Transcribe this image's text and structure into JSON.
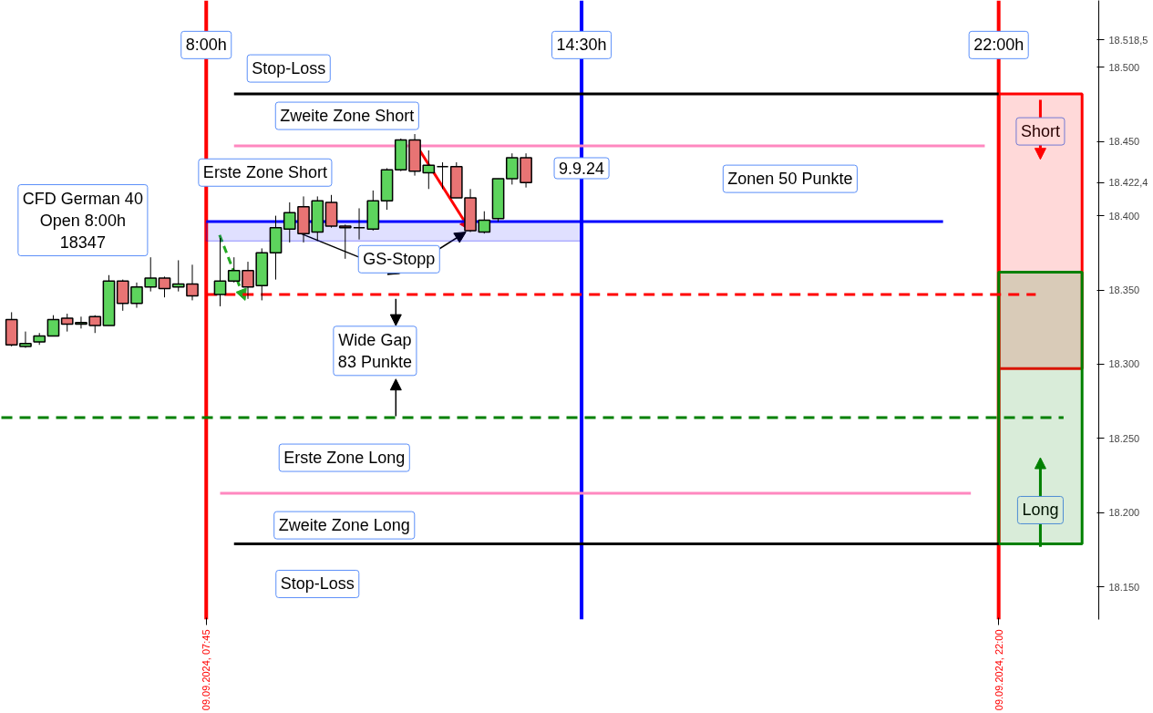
{
  "chart_data": {
    "type": "candlestick",
    "x": [
      "2024-09-09T04:15",
      "2024-09-09T04:30",
      "2024-09-09T04:45",
      "2024-09-09T05:00",
      "2024-09-09T05:15",
      "2024-09-09T05:30",
      "2024-09-09T05:45",
      "2024-09-09T06:00",
      "2024-09-09T06:15",
      "2024-09-09T06:30",
      "2024-09-09T06:45",
      "2024-09-09T07:00",
      "2024-09-09T07:15",
      "2024-09-09T07:30",
      "2024-09-09T08:00",
      "2024-09-09T08:15",
      "2024-09-09T08:30",
      "2024-09-09T08:45",
      "2024-09-09T09:00",
      "2024-09-09T09:15",
      "2024-09-09T09:30",
      "2024-09-09T09:45",
      "2024-09-09T10:00",
      "2024-09-09T10:15",
      "2024-09-09T10:30",
      "2024-09-09T10:45",
      "2024-09-09T11:00",
      "2024-09-09T11:15",
      "2024-09-09T11:30",
      "2024-09-09T11:45",
      "2024-09-09T12:00",
      "2024-09-09T12:15",
      "2024-09-09T12:30",
      "2024-09-09T12:45",
      "2024-09-09T13:00",
      "2024-09-09T13:15",
      "2024-09-09T13:30"
    ],
    "ohlc": [
      [
        18330,
        18335,
        18312,
        18313
      ],
      [
        18312,
        18322,
        18311,
        18314
      ],
      [
        18315,
        18321,
        18313,
        18319
      ],
      [
        18319,
        18333,
        18319,
        18330
      ],
      [
        18331,
        18334,
        18322,
        18327
      ],
      [
        18327,
        18332,
        18324,
        18328
      ],
      [
        18332,
        18333,
        18321,
        18326
      ],
      [
        18326,
        18360,
        18326,
        18356
      ],
      [
        18356,
        18357,
        18336,
        18341
      ],
      [
        18341,
        18355,
        18338,
        18352
      ],
      [
        18352,
        18372,
        18349,
        18358
      ],
      [
        18358,
        18359,
        18345,
        18351
      ],
      [
        18352,
        18370,
        18349,
        18354
      ],
      [
        18354,
        18367,
        18343,
        18346
      ],
      [
        18347,
        18385,
        18339,
        18356
      ],
      [
        18356,
        18372,
        18355,
        18363
      ],
      [
        18363,
        18369,
        18344,
        18352
      ],
      [
        18353,
        18378,
        18343,
        18375
      ],
      [
        18375,
        18400,
        18357,
        18392
      ],
      [
        18391,
        18409,
        18382,
        18402
      ],
      [
        18406,
        18413,
        18382,
        18388
      ],
      [
        18389,
        18413,
        18383,
        18410
      ],
      [
        18409,
        18414,
        18392,
        18393
      ],
      [
        18393,
        18394,
        18371,
        18392
      ],
      [
        18392,
        18405,
        18384,
        18392
      ],
      [
        18391,
        18417,
        18390,
        18410
      ],
      [
        18410,
        18432,
        18404,
        18431
      ],
      [
        18431,
        18452,
        18430,
        18451
      ],
      [
        18451,
        18455,
        18427,
        18430
      ],
      [
        18429,
        18444,
        18418,
        18434
      ],
      [
        18433,
        18436,
        18418,
        18433
      ],
      [
        18433,
        18436,
        18412,
        18412
      ],
      [
        18412,
        18418,
        18389,
        18390
      ],
      [
        18389,
        18403,
        18388,
        18397
      ],
      [
        18398,
        18425,
        18396,
        18425
      ],
      [
        18425,
        18442,
        18421,
        18439
      ],
      [
        18439,
        18442,
        18419,
        18422.4
      ]
    ],
    "colors": [
      "#e87474",
      "#5dd45d",
      "#5dd45d",
      "#5dd45d",
      "#e87474",
      "#5dd45d",
      "#e87474",
      "#5dd45d",
      "#e87474",
      "#5dd45d",
      "#5dd45d",
      "#e87474",
      "#5dd45d",
      "#e87474",
      "#5dd45d",
      "#5dd45d",
      "#e87474",
      "#5dd45d",
      "#5dd45d",
      "#5dd45d",
      "#e87474",
      "#5dd45d",
      "#e87474",
      "#e87474",
      "#000000",
      "#5dd45d",
      "#5dd45d",
      "#5dd45d",
      "#e87474",
      "#5dd45d",
      "#000000",
      "#e87474",
      "#e87474",
      "#5dd45d",
      "#5dd45d",
      "#5dd45d",
      "#e87474"
    ],
    "series": [
      {
        "type": "bar",
        "x": [
          "2024-09-09T22:45"
        ],
        "values": [
          185
        ],
        "base": [
          18297
        ],
        "color": "#ff0000"
      },
      {
        "type": "bar",
        "x": [
          "2024-09-09T22:45"
        ],
        "values": [
          183
        ],
        "base": [
          18179
        ],
        "color": "#008000"
      },
      {
        "type": "line",
        "x": [
          "2024-09-09T08:15",
          "2024-09-09T22:00"
        ],
        "values": [
          18482,
          18482
        ],
        "color": "#000000",
        "line_style": "solid"
      },
      {
        "type": "line",
        "x": [
          "2024-09-09T08:15",
          "2024-09-09T22:00"
        ],
        "values": [
          18179,
          18179
        ],
        "color": "#000000",
        "line_style": "solid"
      },
      {
        "type": "line",
        "x": [
          "2024-09-09T08:15",
          "2024-09-09T21:45"
        ],
        "values": [
          18447,
          18447
        ],
        "color": "#ff88c0",
        "line_style": "solid"
      },
      {
        "type": "line",
        "x": [
          "2024-09-09T08:00",
          "2024-09-09T21:30"
        ],
        "values": [
          18213,
          18213
        ],
        "color": "#ff88c0",
        "line_style": "solid"
      },
      {
        "type": "line",
        "x": [
          "2024-09-09T07:45",
          "2024-09-09T14:30",
          "2024-09-09T21:00"
        ],
        "values": [
          18396,
          18396,
          18396
        ],
        "lower": [
          18383,
          18383,
          null
        ],
        "upper": [
          18396,
          18396,
          null
        ],
        "color": "#0000ff",
        "line_style": "solid"
      },
      {
        "type": "line",
        "x": [
          "2024-09-09T07:45",
          "2024-09-09T22:40"
        ],
        "values": [
          18347,
          18347
        ],
        "color": "#ff0000",
        "line_style": "dashed"
      },
      {
        "type": "line",
        "x": [
          "2024-09-09T04:04",
          "2024-09-09T23:10"
        ],
        "values": [
          18264,
          18264
        ],
        "color": "#008000",
        "line_style": "dashed"
      }
    ],
    "ref_lines": [
      {
        "axis": "x",
        "value": "2024-09-09T07:45",
        "color": "#ff0000"
      },
      {
        "axis": "x",
        "value": "2024-09-09T14:30",
        "color": "#0000ff"
      },
      {
        "axis": "x",
        "value": "2024-09-09T22:00",
        "color": "#ff0000"
      }
    ],
    "annotations": [
      {
        "text": "8:00h",
        "x": "2024-09-09T07:45",
        "y": 18515
      },
      {
        "text": "14:30h",
        "x": "2024-09-09T14:30",
        "y": 18515
      },
      {
        "text": "22:00h",
        "x": "2024-09-09T22:00",
        "y": 18515
      },
      {
        "text": "Stop-Loss",
        "x": "2024-09-09T09:14",
        "y": 18482
      },
      {
        "text": "Zweite Zone Short",
        "x": "2024-09-09T10:17",
        "y": 18447
      },
      "Erste Zone Short",
      "CFD German 40\nOpen 8:00h\n18347",
      {
        "text": "9.9.24",
        "x": "2024-09-09T14:30",
        "y": 18432
      },
      {
        "text": "Zonen 50 Punkte",
        "x": "2024-09-09T18:15",
        "y": 18396
      },
      {
        "text": "GS-Stopp",
        "x": "2024-09-09T11:13",
        "y": 18383
      },
      "Wide Gap\n83 Punkte",
      {
        "text": "Erste Zone Long",
        "x": "2024-09-09T10:14",
        "y": 18264
      },
      {
        "text": "Zweite Zone Long",
        "x": "2024-09-09T10:14",
        "y": 18213
      },
      {
        "text": "Stop-Loss",
        "x": "2024-09-09T09:45",
        "y": 18179
      },
      {
        "text": "Short",
        "x": "2024-09-09T22:45",
        "y": 18482
      },
      {
        "text": "Long",
        "x": "2024-09-09T22:45",
        "y": 18179
      }
    ],
    "xlim": [
      "2024-09-09T04:03",
      "2024-09-09T23:48"
    ],
    "xticks": [
      {
        "value": "2024-09-09T07:45",
        "label": "09.09.2024, 07:45"
      },
      {
        "value": "2024-09-09T22:00",
        "label": "09.09.2024, 22:00"
      }
    ],
    "ylim": [
      18128,
      18545
    ],
    "yticks": [
      {
        "value": 18150,
        "label": "18.150"
      },
      {
        "value": 18200,
        "label": "18.200"
      },
      {
        "value": 18250,
        "label": "18.250"
      },
      {
        "value": 18300,
        "label": "18.300"
      },
      {
        "value": 18350,
        "label": "18.350"
      },
      {
        "value": 18400,
        "label": "18.400"
      },
      {
        "value": 18450,
        "label": "18.450"
      },
      {
        "value": 18500,
        "label": "18.500"
      },
      {
        "value": 18422.4,
        "label": "18.422,4"
      },
      {
        "value": 18518.5,
        "label": "18.518,5"
      }
    ]
  }
}
